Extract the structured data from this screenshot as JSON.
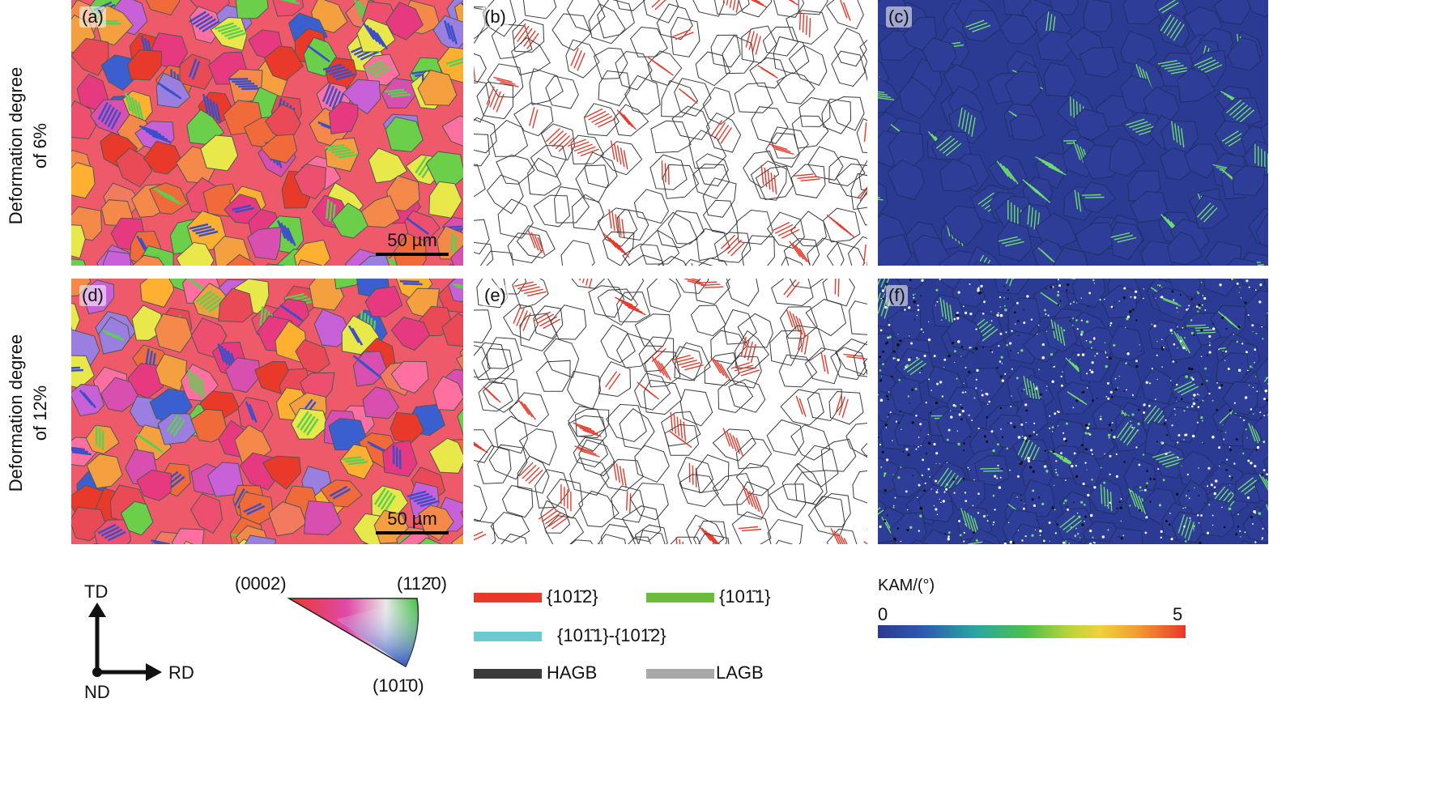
{
  "rows": [
    {
      "label_line1": "Deformation degree",
      "label_line2": "of 6%"
    },
    {
      "label_line1": "Deformation degree",
      "label_line2": "of 12%"
    }
  ],
  "panels": {
    "a": "(a)",
    "b": "(b)",
    "c": "(c)",
    "d": "(d)",
    "e": "(e)",
    "f": "(f)"
  },
  "scalebar": "50 µm",
  "axes": {
    "td": "TD",
    "rd": "RD",
    "nd": "ND"
  },
  "ipf": {
    "corner_left": "(0002)",
    "corner_right": "(112̄0)",
    "corner_bottom": "(101̄0)"
  },
  "boundaries": [
    {
      "label": "{101̄2}",
      "color": "#e8392b"
    },
    {
      "label": "{101̄1}",
      "color": "#6cbb3c"
    },
    {
      "label": "{101̄1}-{101̄2}",
      "color": "#6cc9cf"
    },
    {
      "label": "HAGB",
      "color": "#3a3a3a"
    },
    {
      "label": "LAGB",
      "color": "#a8a8a8"
    }
  ],
  "kam": {
    "title": "KAM/(°)",
    "min": "0",
    "max": "5"
  },
  "colors": {
    "kam_low": "#2b3a92",
    "kam_high": "#e8392b",
    "twin_red": "#e8392b",
    "hagb": "#3a3a3a",
    "twin_green": "#6cbb3c"
  }
}
